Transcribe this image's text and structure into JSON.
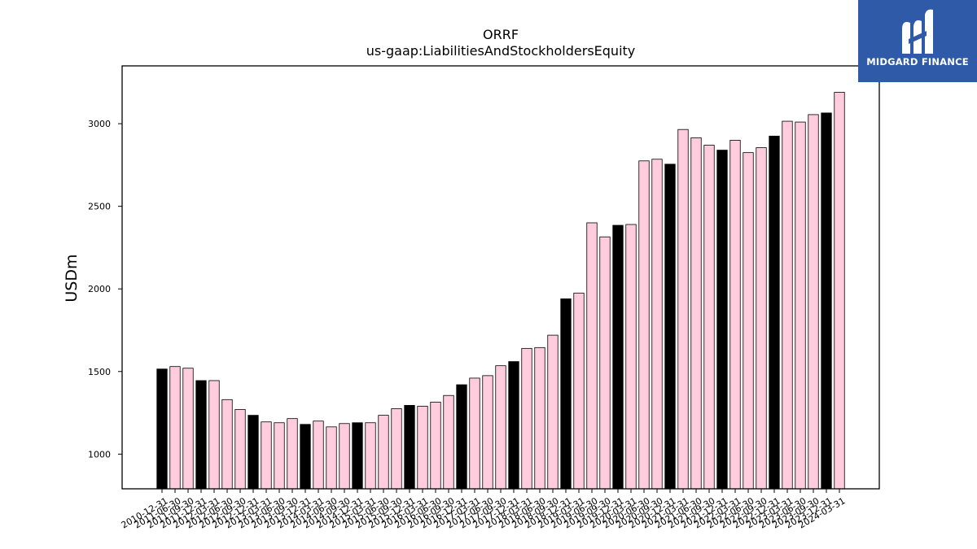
{
  "brand": {
    "logo_text": "MIDGARD FINANCE",
    "logo_icon": "midgard-m-icon",
    "background": "#2f5aa8"
  },
  "chart_data": {
    "type": "bar",
    "title": "ORRF",
    "subtitle": "us-gaap:LiabilitiesAndStockholdersEquity",
    "xlabel": "",
    "ylabel": "USDm",
    "ylim": [
      790,
      3350
    ],
    "yticks": [
      1000,
      1500,
      2000,
      2500,
      3000
    ],
    "grid": false,
    "colors": {
      "annual": "#000000",
      "quarterly": "#ffccdd",
      "edge": "#000000"
    },
    "categories": [
      "2010-12-31",
      "2011-06-30",
      "2011-09-30",
      "2011-12-31",
      "2012-03-31",
      "2012-06-30",
      "2012-09-30",
      "2012-12-31",
      "2013-03-31",
      "2013-06-30",
      "2013-09-30",
      "2013-12-31",
      "2014-03-31",
      "2014-06-30",
      "2014-09-30",
      "2014-12-31",
      "2015-03-31",
      "2015-06-30",
      "2015-09-30",
      "2015-12-31",
      "2016-03-31",
      "2016-06-30",
      "2016-09-30",
      "2016-12-31",
      "2017-03-31",
      "2017-06-30",
      "2017-09-30",
      "2017-12-31",
      "2018-03-31",
      "2018-06-30",
      "2018-09-30",
      "2018-12-31",
      "2019-03-31",
      "2019-06-30",
      "2019-09-30",
      "2019-12-31",
      "2020-03-31",
      "2020-06-30",
      "2020-09-30",
      "2020-12-31",
      "2021-03-31",
      "2021-06-30",
      "2021-09-30",
      "2021-12-31",
      "2022-03-31",
      "2022-06-30",
      "2022-09-30",
      "2022-12-31",
      "2023-03-31",
      "2023-06-30",
      "2023-09-30",
      "2023-12-31",
      "2024-03-31"
    ],
    "values": [
      1515,
      1530,
      1520,
      1445,
      1445,
      1330,
      1270,
      1235,
      1195,
      1190,
      1215,
      1180,
      1200,
      1165,
      1185,
      1190,
      1190,
      1235,
      1275,
      1295,
      1290,
      1315,
      1355,
      1420,
      1460,
      1475,
      1535,
      1560,
      1640,
      1645,
      1720,
      1940,
      1975,
      2400,
      2315,
      2385,
      2390,
      2775,
      2785,
      2755,
      2965,
      2915,
      2870,
      2840,
      2900,
      2825,
      2855,
      2925,
      3015,
      3010,
      3055,
      3065,
      3190
    ],
    "annual": [
      true,
      false,
      false,
      true,
      false,
      false,
      false,
      true,
      false,
      false,
      false,
      true,
      false,
      false,
      false,
      true,
      false,
      false,
      false,
      true,
      false,
      false,
      false,
      true,
      false,
      false,
      false,
      true,
      false,
      false,
      false,
      true,
      false,
      false,
      false,
      true,
      false,
      false,
      false,
      true,
      false,
      false,
      false,
      true,
      false,
      false,
      false,
      true,
      false,
      false,
      false,
      true,
      false
    ]
  }
}
